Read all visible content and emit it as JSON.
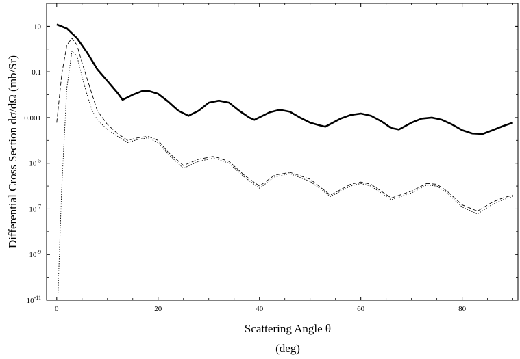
{
  "chart_data": {
    "type": "line",
    "title": "",
    "xlabel": "Scattering Angle θ",
    "xlabel_unit": "(deg)",
    "ylabel": "Differential Cross Section dσ/dΩ (mb/Sr)",
    "xlim": [
      -2,
      91
    ],
    "ylim": [
      1e-11,
      100
    ],
    "yscale": "log",
    "grid": false,
    "legend": "none",
    "x_ticks": [
      {
        "value": 0,
        "label": "0"
      },
      {
        "value": 20,
        "label": "20"
      },
      {
        "value": 40,
        "label": "40"
      },
      {
        "value": 60,
        "label": "60"
      },
      {
        "value": 80,
        "label": "80"
      }
    ],
    "y_ticks": [
      {
        "value": 10,
        "label": "10"
      },
      {
        "value": 0.1,
        "label": "0.1"
      },
      {
        "value": 0.001,
        "label": "0.001"
      },
      {
        "value": 1e-05,
        "label": "10",
        "sup": "-5"
      },
      {
        "value": 1e-07,
        "label": "10",
        "sup": "-7"
      },
      {
        "value": 1e-09,
        "label": "10",
        "sup": "-9"
      },
      {
        "value": 1e-11,
        "label": "10",
        "sup": "-11"
      }
    ],
    "series": [
      {
        "style": "solid",
        "color": "#000000",
        "x": [
          0,
          2,
          4,
          6,
          8,
          10,
          12,
          13,
          15,
          17,
          18,
          20,
          22,
          24,
          26,
          28,
          30,
          32,
          34,
          36,
          38,
          39,
          42,
          44,
          46,
          48,
          50,
          52,
          53,
          56,
          58,
          60,
          62,
          64,
          66,
          67.5,
          70,
          72,
          74,
          76,
          78,
          80,
          82,
          84,
          86,
          88,
          90
        ],
        "y": [
          12,
          8,
          3,
          0.7,
          0.13,
          0.04,
          0.012,
          0.006,
          0.01,
          0.015,
          0.015,
          0.011,
          0.005,
          0.002,
          0.0012,
          0.002,
          0.0045,
          0.0055,
          0.0045,
          0.002,
          0.001,
          0.0008,
          0.0017,
          0.0022,
          0.0018,
          0.001,
          0.0006,
          0.00045,
          0.0004,
          0.0009,
          0.0013,
          0.0015,
          0.0012,
          0.0007,
          0.00035,
          0.0003,
          0.0006,
          0.0009,
          0.001,
          0.0008,
          0.0005,
          0.00028,
          0.0002,
          0.00019,
          0.00028,
          0.00042,
          0.0006
        ]
      },
      {
        "style": "dashed",
        "color": "#000000",
        "x": [
          0,
          1,
          2,
          3,
          4,
          5,
          6,
          7,
          8,
          10,
          12,
          14,
          16,
          18,
          20,
          22,
          25,
          28,
          31,
          34,
          37,
          40,
          43,
          46,
          50,
          54,
          58,
          60,
          62,
          66,
          70,
          73,
          75,
          77,
          80,
          83,
          86,
          88,
          90
        ],
        "y": [
          0.0006,
          0.08,
          1.5,
          3,
          1.5,
          0.25,
          0.05,
          0.01,
          0.002,
          0.0005,
          0.0002,
          0.0001,
          0.00013,
          0.00015,
          0.0001,
          3e-05,
          8e-06,
          1.5e-05,
          2e-05,
          1.2e-05,
          3e-06,
          1e-06,
          3e-06,
          4e-06,
          2e-06,
          4e-07,
          1.2e-06,
          1.5e-06,
          1.2e-06,
          3e-07,
          6e-07,
          1.3e-06,
          1.2e-06,
          6e-07,
          1.5e-07,
          8e-08,
          2e-07,
          3e-07,
          4e-07
        ]
      },
      {
        "style": "dotted",
        "color": "#000000",
        "x": [
          0.2,
          1,
          2,
          3,
          4,
          5,
          6,
          7,
          8,
          10,
          12,
          14,
          16,
          18,
          20,
          22,
          25,
          28,
          31,
          34,
          37,
          40,
          43,
          46,
          50,
          54,
          58,
          60,
          62,
          66,
          70,
          73,
          75,
          77,
          80,
          83,
          86,
          88,
          90
        ],
        "y": [
          1e-11,
          1e-06,
          0.02,
          0.8,
          0.5,
          0.06,
          0.01,
          0.002,
          0.0008,
          0.0003,
          0.00015,
          8e-05,
          0.00011,
          0.00013,
          8e-05,
          2.5e-05,
          6e-06,
          1.2e-05,
          1.7e-05,
          1e-05,
          2.5e-06,
          8e-07,
          2.5e-06,
          3.5e-06,
          1.6e-06,
          3.5e-07,
          1e-06,
          1.3e-06,
          1e-06,
          2.5e-07,
          5e-07,
          1.1e-06,
          1e-06,
          5e-07,
          1.2e-07,
          6e-08,
          1.6e-07,
          2.5e-07,
          3.5e-07
        ]
      }
    ]
  }
}
